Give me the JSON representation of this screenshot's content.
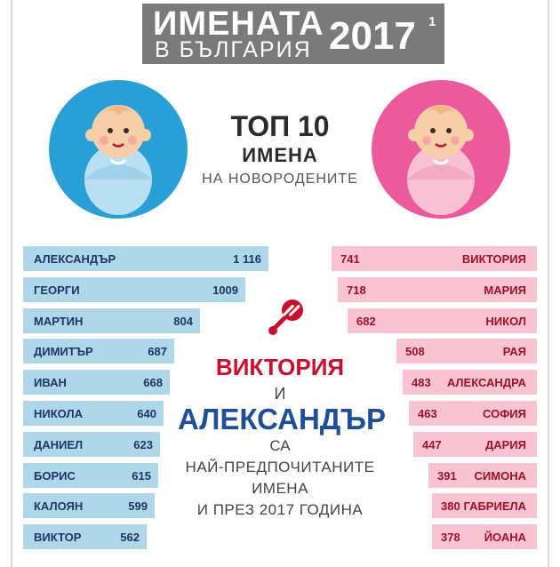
{
  "header": {
    "title_line1": "ИМЕНАТА",
    "title_line2": "В БЪЛГАРИЯ",
    "year": "2017",
    "footnote": "1"
  },
  "center": {
    "top_heading": "ТОП 10",
    "names_heading": "ИМЕНА",
    "newborn_heading": "НА НОВОРОДЕНИТЕ",
    "girl_name": "ВИКТОРИЯ",
    "and_word": "И",
    "boy_name": "АЛЕКСАНДЪР",
    "are_word": "СА",
    "pref_line1": "НАЙ-ПРЕДПОЧИТАНИТЕ",
    "pref_line2": "ИМЕНА",
    "pref_line3": "И ПРЕЗ 2017 ГОДИНА"
  },
  "icons": {
    "boy_baby": "baby-boy-icon",
    "girl_baby": "baby-girl-icon",
    "rattle": "rattle-icon"
  },
  "colors": {
    "boy_bar": "#aed8ea",
    "girl_bar": "#f8c4d2",
    "boy_text": "#1f3566",
    "girl_text": "#a1102a",
    "boy_circle": "#2a9fd6",
    "girl_circle": "#ec5a9c",
    "title_bg": "#7a7a7a"
  },
  "chart_data": [
    {
      "type": "bar",
      "orientation": "horizontal",
      "categories": [
        "АЛЕКСАНДЪР",
        "ГЕОРГИ",
        "МАРТИН",
        "ДИМИТЪР",
        "ИВАН",
        "НИКОЛА",
        "ДАНИЕЛ",
        "БОРИС",
        "КАЛОЯН",
        "ВИКТОР"
      ],
      "values": [
        1116,
        1009,
        804,
        687,
        668,
        640,
        623,
        615,
        599,
        562
      ],
      "value_labels": [
        "1 116",
        "1009",
        "804",
        "687",
        "668",
        "640",
        "623",
        "615",
        "599",
        "562"
      ]
    },
    {
      "type": "bar",
      "orientation": "horizontal",
      "categories": [
        "ВИКТОРИЯ",
        "МАРИЯ",
        "НИКОЛ",
        "РАЯ",
        "АЛЕКСАНДРА",
        "СОФИЯ",
        "ДАРИЯ",
        "СИМОНА",
        "ГАБРИЕЛА",
        "ЙОАНА"
      ],
      "values": [
        741,
        718,
        682,
        508,
        483,
        463,
        447,
        391,
        380,
        378
      ],
      "value_labels": [
        "741",
        "718",
        "682",
        "508",
        "483",
        "463",
        "447",
        "391",
        "380",
        "378"
      ]
    }
  ]
}
